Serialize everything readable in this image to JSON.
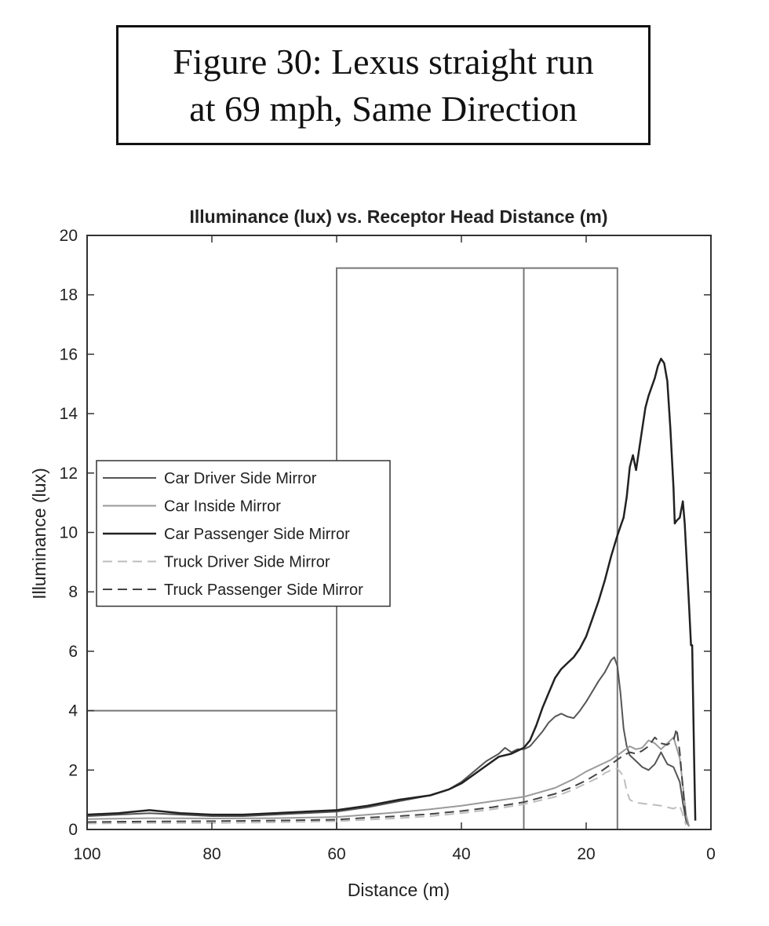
{
  "figure_caption": {
    "line1": "Figure 30: Lexus straight run",
    "line2": "at 69 mph, Same Direction"
  },
  "chart_data": {
    "type": "line",
    "title": "Illuminance (lux) vs. Receptor Head Distance (m)",
    "xlabel": "Distance (m)",
    "ylabel": "Illuminance (lux)",
    "xlim": [
      100,
      0
    ],
    "ylim": [
      0,
      20
    ],
    "x_reversed": true,
    "xticks": [
      100,
      80,
      60,
      40,
      20,
      0
    ],
    "yticks": [
      0,
      2,
      4,
      6,
      8,
      10,
      12,
      14,
      16,
      18,
      20
    ],
    "grid": false,
    "legend_position": "center-left",
    "reference_lines": [
      {
        "points": [
          [
            100,
            4
          ],
          [
            60,
            4
          ],
          [
            60,
            0
          ]
        ]
      },
      {
        "points": [
          [
            60,
            0
          ],
          [
            60,
            18.9
          ],
          [
            15,
            18.9
          ],
          [
            15,
            0
          ]
        ]
      },
      {
        "points": [
          [
            30,
            0
          ],
          [
            30,
            18.9
          ]
        ]
      }
    ],
    "series": [
      {
        "name": "Car Driver Side Mirror",
        "style": "solid",
        "color": "#555555",
        "width": 2,
        "points": [
          [
            100,
            0.45
          ],
          [
            95,
            0.5
          ],
          [
            90,
            0.55
          ],
          [
            85,
            0.5
          ],
          [
            80,
            0.45
          ],
          [
            75,
            0.45
          ],
          [
            70,
            0.5
          ],
          [
            65,
            0.55
          ],
          [
            60,
            0.6
          ],
          [
            55,
            0.75
          ],
          [
            50,
            0.95
          ],
          [
            45,
            1.15
          ],
          [
            42,
            1.35
          ],
          [
            40,
            1.6
          ],
          [
            38,
            1.95
          ],
          [
            36,
            2.3
          ],
          [
            34,
            2.55
          ],
          [
            33,
            2.75
          ],
          [
            32,
            2.6
          ],
          [
            31,
            2.7
          ],
          [
            30,
            2.7
          ],
          [
            29,
            2.8
          ],
          [
            28,
            3.05
          ],
          [
            27,
            3.3
          ],
          [
            26,
            3.6
          ],
          [
            25,
            3.8
          ],
          [
            24,
            3.9
          ],
          [
            23,
            3.8
          ],
          [
            22,
            3.75
          ],
          [
            21,
            4.0
          ],
          [
            20,
            4.3
          ],
          [
            19,
            4.65
          ],
          [
            18,
            5.0
          ],
          [
            17,
            5.3
          ],
          [
            16,
            5.7
          ],
          [
            15.5,
            5.8
          ],
          [
            15,
            5.5
          ],
          [
            14.5,
            4.6
          ],
          [
            14,
            3.4
          ],
          [
            13.5,
            2.8
          ],
          [
            13,
            2.5
          ],
          [
            12,
            2.3
          ],
          [
            11,
            2.1
          ],
          [
            10,
            2.0
          ],
          [
            9,
            2.2
          ],
          [
            8,
            2.6
          ],
          [
            7,
            2.2
          ],
          [
            6,
            2.1
          ],
          [
            5,
            1.6
          ],
          [
            4.5,
            0.9
          ],
          [
            4,
            0.3
          ],
          [
            3.5,
            0.1
          ]
        ]
      },
      {
        "name": "Car Inside Mirror",
        "style": "solid",
        "color": "#9a9a9a",
        "width": 2,
        "points": [
          [
            100,
            0.35
          ],
          [
            90,
            0.38
          ],
          [
            80,
            0.37
          ],
          [
            70,
            0.38
          ],
          [
            60,
            0.42
          ],
          [
            55,
            0.5
          ],
          [
            50,
            0.58
          ],
          [
            45,
            0.68
          ],
          [
            40,
            0.8
          ],
          [
            35,
            0.95
          ],
          [
            30,
            1.1
          ],
          [
            25,
            1.4
          ],
          [
            22,
            1.7
          ],
          [
            20,
            1.95
          ],
          [
            18,
            2.15
          ],
          [
            16,
            2.35
          ],
          [
            15,
            2.5
          ],
          [
            14,
            2.65
          ],
          [
            13,
            2.8
          ],
          [
            12,
            2.7
          ],
          [
            11,
            2.75
          ],
          [
            10,
            3.0
          ],
          [
            9,
            2.9
          ],
          [
            8,
            2.7
          ],
          [
            7,
            2.9
          ],
          [
            6,
            3.1
          ],
          [
            5,
            2.4
          ],
          [
            4.5,
            1.5
          ],
          [
            4,
            0.5
          ],
          [
            3.5,
            0.1
          ]
        ]
      },
      {
        "name": "Car Passenger Side Mirror",
        "style": "solid",
        "color": "#222222",
        "width": 2.5,
        "points": [
          [
            100,
            0.5
          ],
          [
            95,
            0.55
          ],
          [
            90,
            0.65
          ],
          [
            85,
            0.55
          ],
          [
            80,
            0.5
          ],
          [
            75,
            0.5
          ],
          [
            70,
            0.55
          ],
          [
            65,
            0.6
          ],
          [
            60,
            0.65
          ],
          [
            55,
            0.8
          ],
          [
            50,
            1.0
          ],
          [
            45,
            1.15
          ],
          [
            42,
            1.35
          ],
          [
            40,
            1.55
          ],
          [
            38,
            1.85
          ],
          [
            36,
            2.15
          ],
          [
            34,
            2.45
          ],
          [
            32,
            2.55
          ],
          [
            30,
            2.75
          ],
          [
            29,
            3.0
          ],
          [
            28,
            3.5
          ],
          [
            27,
            4.1
          ],
          [
            26,
            4.6
          ],
          [
            25,
            5.1
          ],
          [
            24,
            5.4
          ],
          [
            23,
            5.6
          ],
          [
            22,
            5.8
          ],
          [
            21,
            6.1
          ],
          [
            20,
            6.5
          ],
          [
            19,
            7.1
          ],
          [
            18,
            7.7
          ],
          [
            17,
            8.4
          ],
          [
            16,
            9.2
          ],
          [
            15,
            9.9
          ],
          [
            14.5,
            10.2
          ],
          [
            14,
            10.5
          ],
          [
            13.5,
            11.2
          ],
          [
            13,
            12.2
          ],
          [
            12.5,
            12.6
          ],
          [
            12,
            12.1
          ],
          [
            11,
            13.5
          ],
          [
            10.5,
            14.2
          ],
          [
            10,
            14.6
          ],
          [
            9,
            15.2
          ],
          [
            8.5,
            15.6
          ],
          [
            8,
            15.85
          ],
          [
            7.5,
            15.7
          ],
          [
            7,
            15.1
          ],
          [
            6.5,
            13.5
          ],
          [
            6,
            11.5
          ],
          [
            5.8,
            10.3
          ],
          [
            5.5,
            10.4
          ],
          [
            5,
            10.5
          ],
          [
            4.5,
            11.05
          ],
          [
            4.2,
            10.3
          ],
          [
            4,
            9.5
          ],
          [
            3.5,
            7.5
          ],
          [
            3.2,
            6.2
          ],
          [
            3.0,
            6.2
          ],
          [
            2.7,
            2.5
          ],
          [
            2.5,
            0.3
          ]
        ]
      },
      {
        "name": "Truck Driver Side Mirror",
        "style": "dashed",
        "color": "#bdbdbd",
        "width": 2,
        "points": [
          [
            100,
            0.2
          ],
          [
            90,
            0.22
          ],
          [
            80,
            0.22
          ],
          [
            70,
            0.24
          ],
          [
            60,
            0.28
          ],
          [
            55,
            0.33
          ],
          [
            50,
            0.38
          ],
          [
            45,
            0.45
          ],
          [
            40,
            0.55
          ],
          [
            35,
            0.68
          ],
          [
            30,
            0.85
          ],
          [
            25,
            1.1
          ],
          [
            22,
            1.35
          ],
          [
            20,
            1.55
          ],
          [
            18,
            1.75
          ],
          [
            17,
            1.9
          ],
          [
            16,
            2.0
          ],
          [
            15,
            2.05
          ],
          [
            14,
            1.8
          ],
          [
            13.5,
            1.3
          ],
          [
            13,
            1.0
          ],
          [
            12,
            0.9
          ],
          [
            10,
            0.85
          ],
          [
            8,
            0.8
          ],
          [
            7,
            0.75
          ],
          [
            6,
            0.7
          ],
          [
            5,
            0.8
          ],
          [
            4.5,
            0.5
          ],
          [
            4,
            0.15
          ]
        ]
      },
      {
        "name": "Truck Passenger Side Mirror",
        "style": "dashed",
        "color": "#444444",
        "width": 2,
        "points": [
          [
            100,
            0.25
          ],
          [
            90,
            0.27
          ],
          [
            80,
            0.28
          ],
          [
            70,
            0.3
          ],
          [
            60,
            0.33
          ],
          [
            55,
            0.4
          ],
          [
            50,
            0.45
          ],
          [
            45,
            0.52
          ],
          [
            40,
            0.62
          ],
          [
            35,
            0.75
          ],
          [
            30,
            0.92
          ],
          [
            25,
            1.2
          ],
          [
            22,
            1.45
          ],
          [
            20,
            1.65
          ],
          [
            18,
            1.9
          ],
          [
            16,
            2.2
          ],
          [
            15,
            2.35
          ],
          [
            14,
            2.5
          ],
          [
            13,
            2.6
          ],
          [
            12,
            2.55
          ],
          [
            11,
            2.65
          ],
          [
            10,
            2.8
          ],
          [
            9,
            3.1
          ],
          [
            8,
            2.9
          ],
          [
            7,
            2.85
          ],
          [
            6,
            3.0
          ],
          [
            5.5,
            3.4
          ],
          [
            5,
            2.6
          ],
          [
            4.5,
            1.4
          ],
          [
            4,
            0.3
          ]
        ]
      }
    ]
  }
}
